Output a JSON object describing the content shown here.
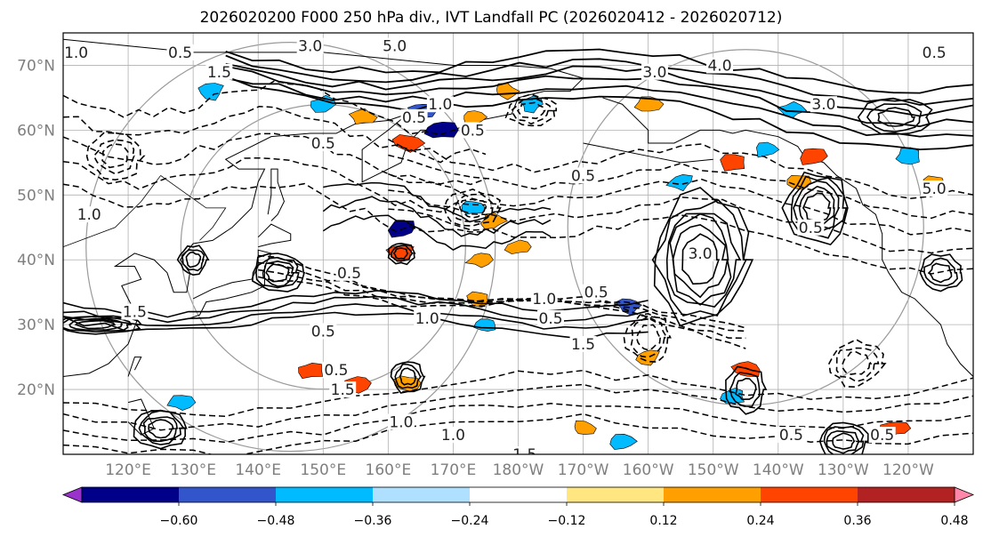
{
  "chart_data": {
    "type": "heatmap",
    "title": "2026020200 F000 250 hPa div., IVT Landfall PC (2026020412 - 2026020712)",
    "map": {
      "projection": "plate-carree",
      "lon_range_east": [
        110,
        250
      ],
      "lat_range": [
        10,
        75
      ],
      "lat_ticks": [
        {
          "lat": 70,
          "label": "70°N"
        },
        {
          "lat": 60,
          "label": "60°N"
        },
        {
          "lat": 50,
          "label": "50°N"
        },
        {
          "lat": 40,
          "label": "40°N"
        },
        {
          "lat": 30,
          "label": "30°N"
        },
        {
          "lat": 20,
          "label": "20°N"
        }
      ],
      "lon_ticks": [
        {
          "lon": 120,
          "label": "120°E"
        },
        {
          "lon": 130,
          "label": "130°E"
        },
        {
          "lon": 140,
          "label": "140°E"
        },
        {
          "lon": 150,
          "label": "150°E"
        },
        {
          "lon": 160,
          "label": "160°E"
        },
        {
          "lon": 170,
          "label": "170°E"
        },
        {
          "lon": 180,
          "label": "180°W"
        },
        {
          "lon": 190,
          "label": "170°W"
        },
        {
          "lon": 200,
          "label": "160°W"
        },
        {
          "lon": 210,
          "label": "150°W"
        },
        {
          "lon": 220,
          "label": "140°W"
        },
        {
          "lon": 230,
          "label": "130°W"
        },
        {
          "lon": 240,
          "label": "120°W"
        }
      ],
      "grid": true
    },
    "colorbar": {
      "orientation": "horizontal",
      "extend": "both",
      "boundaries": [
        -0.6,
        -0.48,
        -0.36,
        -0.24,
        -0.12,
        0.12,
        0.24,
        0.36,
        0.48,
        0.6
      ],
      "tick_labels": [
        "−0.60",
        "−0.48",
        "−0.36",
        "−0.24",
        "−0.12",
        "0.12",
        "0.24",
        "0.36",
        "0.48",
        "0.60"
      ],
      "colors": [
        "#9933cc",
        "#000088",
        "#3355cc",
        "#00bbff",
        "#b0e0ff",
        "#ffffff",
        "#ffe680",
        "#ffa000",
        "#ff4400",
        "#b22222",
        "#ff88aa"
      ]
    },
    "shaded_regions": [
      {
        "lon": 150,
        "lat": 64,
        "value": -0.3
      },
      {
        "lon": 165,
        "lat": 63,
        "value": -0.4
      },
      {
        "lon": 168,
        "lat": 60,
        "value": -0.5
      },
      {
        "lon": 173,
        "lat": 62,
        "value": 0.3
      },
      {
        "lon": 163,
        "lat": 58,
        "value": 0.4
      },
      {
        "lon": 156,
        "lat": 62,
        "value": 0.35
      },
      {
        "lon": 162,
        "lat": 45,
        "value": -0.5
      },
      {
        "lon": 162,
        "lat": 41,
        "value": 0.42
      },
      {
        "lon": 173,
        "lat": 48,
        "value": -0.3
      },
      {
        "lon": 176,
        "lat": 46,
        "value": 0.3
      },
      {
        "lon": 180,
        "lat": 42,
        "value": 0.25
      },
      {
        "lon": 174,
        "lat": 40,
        "value": 0.28
      },
      {
        "lon": 148,
        "lat": 23,
        "value": 0.4
      },
      {
        "lon": 155,
        "lat": 21,
        "value": 0.38
      },
      {
        "lon": 163,
        "lat": 21,
        "value": 0.32
      },
      {
        "lon": 175,
        "lat": 30,
        "value": -0.28
      },
      {
        "lon": 174,
        "lat": 34,
        "value": 0.25
      },
      {
        "lon": 197,
        "lat": 33,
        "value": -0.4
      },
      {
        "lon": 200,
        "lat": 25,
        "value": 0.3
      },
      {
        "lon": 205,
        "lat": 52,
        "value": -0.3
      },
      {
        "lon": 213,
        "lat": 55,
        "value": 0.4
      },
      {
        "lon": 218,
        "lat": 57,
        "value": -0.35
      },
      {
        "lon": 223,
        "lat": 52,
        "value": 0.3
      },
      {
        "lon": 225,
        "lat": 56,
        "value": 0.4
      },
      {
        "lon": 222,
        "lat": 63,
        "value": -0.3
      },
      {
        "lon": 200,
        "lat": 64,
        "value": 0.3
      },
      {
        "lon": 182,
        "lat": 64,
        "value": -0.28
      },
      {
        "lon": 178,
        "lat": 66,
        "value": 0.26
      },
      {
        "lon": 240,
        "lat": 56,
        "value": -0.3
      },
      {
        "lon": 244,
        "lat": 52,
        "value": 0.3
      },
      {
        "lon": 215,
        "lat": 23,
        "value": 0.4
      },
      {
        "lon": 213,
        "lat": 19,
        "value": -0.35
      },
      {
        "lon": 238,
        "lat": 14,
        "value": 0.4
      },
      {
        "lon": 196,
        "lat": 12,
        "value": -0.3
      },
      {
        "lon": 190,
        "lat": 14,
        "value": 0.3
      },
      {
        "lon": 133,
        "lat": 66,
        "value": -0.3
      },
      {
        "lon": 128,
        "lat": 18,
        "value": -0.3
      }
    ],
    "contour_labels": [
      {
        "lon": 112,
        "lat": 72,
        "text": "1.0"
      },
      {
        "lon": 128,
        "lat": 72,
        "text": "0.5"
      },
      {
        "lon": 134,
        "lat": 69,
        "text": "1.5"
      },
      {
        "lon": 148,
        "lat": 73,
        "text": "3.0"
      },
      {
        "lon": 161,
        "lat": 73,
        "text": "5.0"
      },
      {
        "lon": 164,
        "lat": 62,
        "text": "0.5"
      },
      {
        "lon": 173,
        "lat": 60,
        "text": "0.5"
      },
      {
        "lon": 168,
        "lat": 64,
        "text": "1.0"
      },
      {
        "lon": 150,
        "lat": 58,
        "text": "0.5"
      },
      {
        "lon": 190,
        "lat": 53,
        "text": "0.5"
      },
      {
        "lon": 201,
        "lat": 69,
        "text": "3.0"
      },
      {
        "lon": 211,
        "lat": 70,
        "text": "4.0"
      },
      {
        "lon": 227,
        "lat": 64,
        "text": "3.0"
      },
      {
        "lon": 244,
        "lat": 72,
        "text": "0.5"
      },
      {
        "lon": 244,
        "lat": 51,
        "text": "5.0"
      },
      {
        "lon": 208,
        "lat": 41,
        "text": "3.0"
      },
      {
        "lon": 154,
        "lat": 38,
        "text": "0.5"
      },
      {
        "lon": 166,
        "lat": 31,
        "text": "1.0"
      },
      {
        "lon": 184,
        "lat": 34,
        "text": "1.0"
      },
      {
        "lon": 185,
        "lat": 31,
        "text": "0.5"
      },
      {
        "lon": 192,
        "lat": 35,
        "text": "0.5"
      },
      {
        "lon": 190,
        "lat": 27,
        "text": "1.5"
      },
      {
        "lon": 150,
        "lat": 29,
        "text": "0.5"
      },
      {
        "lon": 152,
        "lat": 23,
        "text": "0.5"
      },
      {
        "lon": 153,
        "lat": 20,
        "text": "1.5"
      },
      {
        "lon": 162,
        "lat": 15,
        "text": "1.0"
      },
      {
        "lon": 170,
        "lat": 13,
        "text": "1.0"
      },
      {
        "lon": 181,
        "lat": 10,
        "text": "1.5"
      },
      {
        "lon": 121,
        "lat": 32,
        "text": "1.5"
      },
      {
        "lon": 222,
        "lat": 13,
        "text": "0.5"
      },
      {
        "lon": 236,
        "lat": 13,
        "text": "0.5"
      },
      {
        "lon": 225,
        "lat": 45,
        "text": "0.5"
      },
      {
        "lon": 114,
        "lat": 47,
        "text": "1.0"
      }
    ]
  }
}
